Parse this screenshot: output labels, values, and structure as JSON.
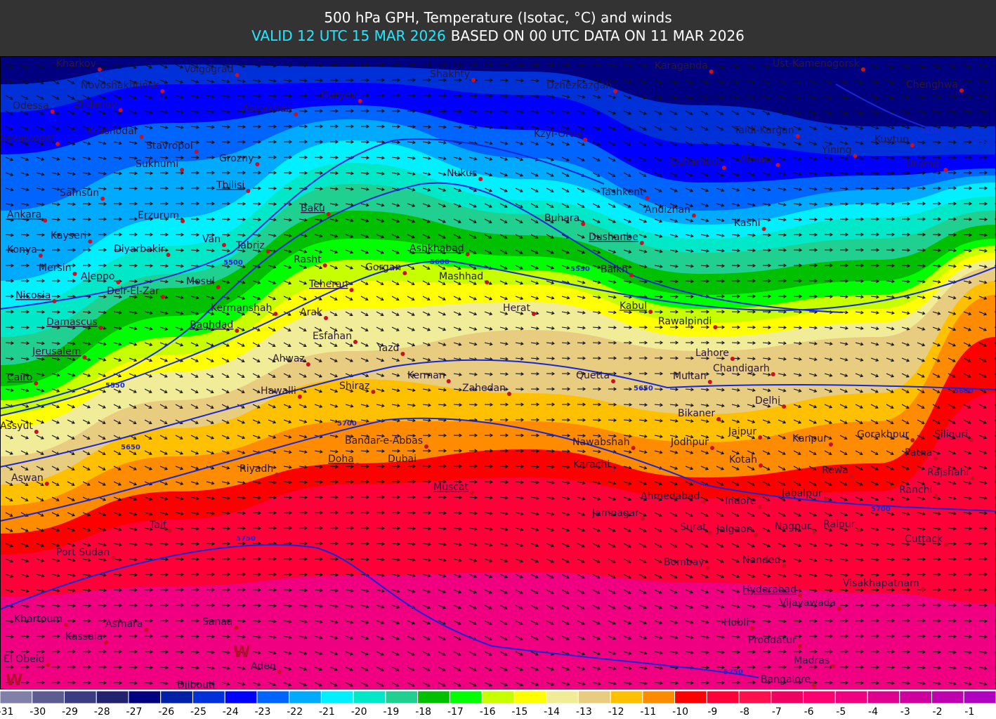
{
  "header": {
    "title": "500 hPa GPH, Temperature (Isotac, °C) and winds",
    "valid": "VALID 12 UTC 15 MAR 2026",
    "based_on": "BASED ON 00 UTC DATA ON 11 MAR 2026"
  },
  "map": {
    "cities": [
      "Kharkov",
      "Volgograd",
      "Shakhty",
      "Karaganda",
      "Ust-Kamenogorsk",
      "Novoshakhtinsk",
      "Guryev",
      "Dzhezkazgan",
      "Chenghwa",
      "Odessa",
      "Zhdanov",
      "Astrakhan",
      "Krasnodar",
      "Kzyl-Orda",
      "Taldi-Kurgan",
      "Sevastopol",
      "Stavropol",
      "Yining",
      "Kuytun",
      "Sukhumi",
      "Grozny",
      "Nukus",
      "Dzhambul",
      "Almaty",
      "Urumqi",
      "Samsun",
      "Tbilisi",
      "Tashkent",
      "Baku",
      "Ankara",
      "Erzurum",
      "Andizhan",
      "Buhara",
      "Kashi",
      "Kayseri",
      "Van",
      "Tabriz",
      "Dushanbe",
      "Konya",
      "Diyarbakir",
      "Ashkhabad",
      "Rasht",
      "Mersin",
      "Gorgan",
      "Balkh",
      "Aleppo",
      "Mashhad",
      "Mosul",
      "Nicosia",
      "Deir-El-Zar",
      "Teheran",
      "Kabul",
      "Herat",
      "Kermanshah",
      "Arak",
      "Rawalpindi",
      "Damascus",
      "Baghdad",
      "Esfahan",
      "Lahore",
      "Jerusalem",
      "Yazd",
      "Ahwaz",
      "Chandigarh",
      "Cairo",
      "Kerman",
      "Quetta",
      "Multan",
      "Shiraz",
      "Hawalli",
      "Zahedan",
      "Delhi",
      "Assyut",
      "Bikaner",
      "Jaipur",
      "Kanpur",
      "Gorakhpur",
      "Siliguri",
      "Bandar-e-Abbas",
      "Nawabshah",
      "Jodhpur",
      "Patna",
      "Doha",
      "Dubai",
      "Kotah",
      "Karachi",
      "Riyadh",
      "Rewa",
      "Rajshahi",
      "Aswan",
      "Muscat",
      "Ahmedabad",
      "Ranchi",
      "Jabalpur",
      "Indore",
      "Jamnagar",
      "Taif",
      "Surat",
      "Jalgaon",
      "Nagpur",
      "Raipur",
      "Cuttack",
      "Port Sudan",
      "Bombay",
      "Nanded",
      "Visakhapatnam",
      "Hyderabad",
      "Vijayawada",
      "Khartoum",
      "Asmara",
      "Sanaa",
      "Hubli",
      "Kassala",
      "Proddatur",
      "El Obeid",
      "Madras",
      "Aden",
      "Bangalore",
      "Djibouti"
    ],
    "contour_labels": [
      "5450",
      "5500",
      "5550",
      "5550",
      "5600",
      "5600",
      "5650",
      "5650",
      "5700",
      "5700",
      "5750",
      "5750"
    ],
    "markers": [
      "W",
      "W"
    ]
  },
  "legend": {
    "ticks": [
      -31,
      -30,
      -29,
      -28,
      -27,
      -26,
      -25,
      -24,
      -23,
      -22,
      -21,
      -20,
      -19,
      -18,
      -17,
      -16,
      -15,
      -14,
      -13,
      -12,
      -11,
      -10,
      -9,
      -8,
      -7,
      -6,
      -5,
      -4,
      -3,
      -2,
      -1
    ],
    "colors": [
      "#8080a8",
      "#5c5c90",
      "#3c3c82",
      "#22226e",
      "#000080",
      "#0020a8",
      "#0030d8",
      "#0000ff",
      "#0064ff",
      "#00aaff",
      "#00f0ff",
      "#00e8c8",
      "#20d090",
      "#00c000",
      "#00ff00",
      "#c8ff00",
      "#ffff00",
      "#f0ec98",
      "#e8cc80",
      "#ffc000",
      "#ff8c00",
      "#ff0000",
      "#ff0038",
      "#ff104c",
      "#f00060",
      "#ff0070",
      "#f00080",
      "#e0008f",
      "#d0009e",
      "#c000ae",
      "#b000c0"
    ]
  }
}
